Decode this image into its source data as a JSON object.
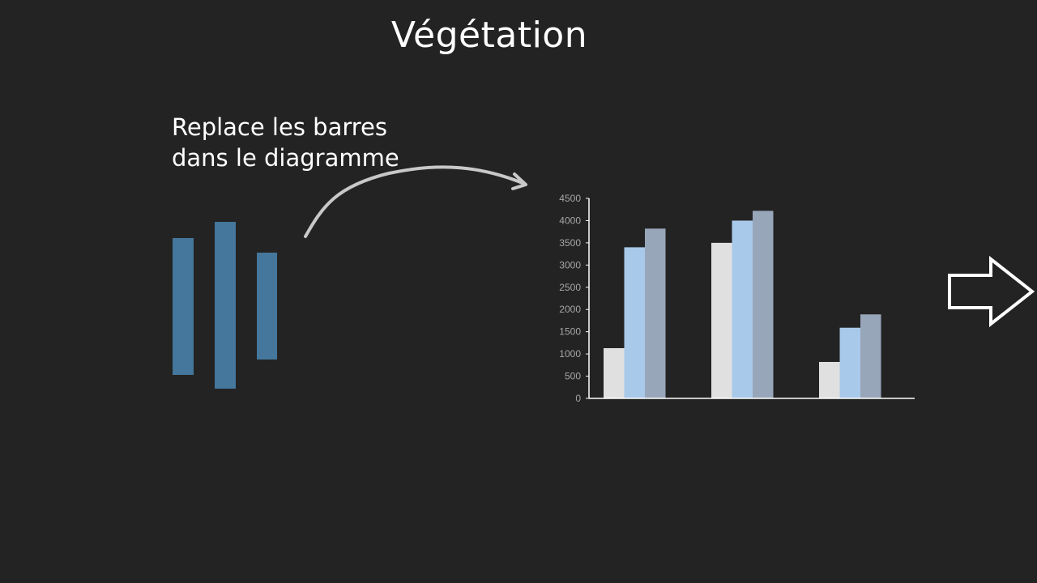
{
  "title": "Végétation",
  "instruction": {
    "line1": "Replace les barres",
    "line2": "dans le diagramme"
  },
  "loose_bars": [
    {
      "color": "#44779b"
    },
    {
      "color": "#44779b"
    },
    {
      "color": "#44779b"
    }
  ],
  "chart_data": {
    "type": "bar",
    "categories": [
      "",
      "",
      ""
    ],
    "series": [
      {
        "values": [
          1130,
          3500,
          820
        ],
        "color": "#e0e0e0"
      },
      {
        "values": [
          3400,
          4000,
          1590
        ],
        "color": "#a9c9ea"
      },
      {
        "values": [
          3820,
          4220,
          1890
        ],
        "color": "#98a6ba"
      }
    ],
    "ylim": [
      0,
      4500
    ],
    "yticks": [
      0,
      500,
      1000,
      1500,
      2000,
      2500,
      3000,
      3500,
      4000,
      4500
    ],
    "grid": false,
    "legend": "none",
    "tick_color": "#a6a6a6",
    "axis_color": "#ffffff"
  },
  "icons": {
    "curve": "curved-arrow-icon",
    "next": "right-arrow-icon"
  }
}
